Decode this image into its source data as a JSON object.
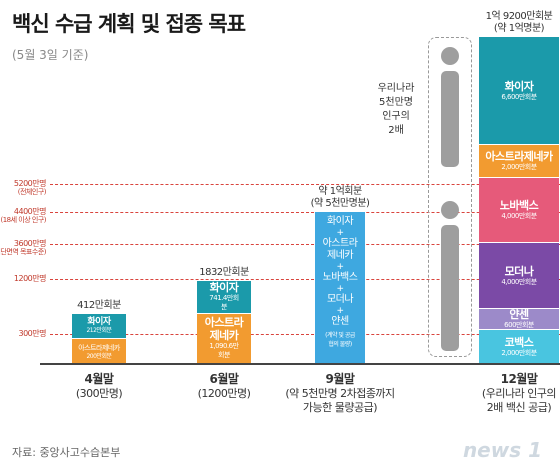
{
  "header": {
    "title": "백신 수급 계획 및 접종 목표",
    "subtitle": "(5월 3일 기준)"
  },
  "source": "자료: 중앙사고수습본부",
  "logo": "news 1",
  "colors": {
    "pfizer": "#1b9aaa",
    "astrazeneca": "#f29b30",
    "novavax": "#e65a7a",
    "moderna": "#7b4aa6",
    "janssen": "#9c8ac9",
    "covax": "#49c5e0",
    "combined": "#3ea8e0",
    "threshold": "#d9443d"
  },
  "person_note": [
    "우리나라",
    "5천만명",
    "인구의",
    "2배"
  ],
  "chart_data": {
    "type": "bar",
    "unit": "만회분",
    "thresholds": [
      {
        "value": 5200,
        "label": "5200만명",
        "note": "(전체인구)"
      },
      {
        "value": 4400,
        "label": "4400만명",
        "note": "(18세 이상 인구)"
      },
      {
        "value": 3600,
        "label": "3600만명",
        "note": "(집단면역 목표수준)"
      },
      {
        "value": 1200,
        "label": "1200만명",
        "note": ""
      },
      {
        "value": 300,
        "label": "300만명",
        "note": ""
      }
    ],
    "bars": [
      {
        "category": "4월말",
        "category_note": [
          "(300만명)"
        ],
        "total_label": "412만회분",
        "total": 412,
        "segments": [
          {
            "name": "화이자",
            "value_label": "212만회분",
            "value": 212,
            "color": "#1b9aaa"
          },
          {
            "name": "아스트라제네카",
            "value_label": "200만회분",
            "value": 200,
            "color": "#f29b30"
          }
        ]
      },
      {
        "category": "6월말",
        "category_note": [
          "(1200만명)"
        ],
        "total_label": "1832만회분",
        "total": 1832,
        "segments": [
          {
            "name": "화이자",
            "value_label": "741.4만회분",
            "value": 741.4,
            "color": "#1b9aaa"
          },
          {
            "name": "아스트라제네카",
            "value_label": "1,090.6만회분",
            "value": 1090.6,
            "color": "#f29b30"
          }
        ]
      },
      {
        "category": "9월말",
        "category_note": [
          "(약 5천만명 2차접종까지",
          "가능한 물량공급)"
        ],
        "total_label": "약 1억회분",
        "total_label2": "(약 5천만명분)",
        "total": 10000,
        "combined": true,
        "combined_items": [
          "화이자",
          "+",
          "아스트라제네카",
          "+",
          "노바백스",
          "+",
          "모더나",
          "+",
          "얀센"
        ],
        "combined_note": "(계약 및 공급 협의 물량)"
      },
      {
        "category": "12월말",
        "category_note": [
          "(우리나라 인구의",
          "2배 백신 공급)"
        ],
        "total_label": "1억 9200만회분",
        "total_label2": "(약 1억명분)",
        "total": 19200,
        "segments": [
          {
            "name": "화이자",
            "value_label": "6,600만회분",
            "value": 6600,
            "color": "#1b9aaa"
          },
          {
            "name": "아스트라제네카",
            "value_label": "2,000만회분",
            "value": 2000,
            "color": "#f29b30"
          },
          {
            "name": "노바백스",
            "value_label": "4,000만회분",
            "value": 4000,
            "color": "#e65a7a"
          },
          {
            "name": "모더나",
            "value_label": "4,000만회분",
            "value": 4000,
            "color": "#7b4aa6"
          },
          {
            "name": "얀센",
            "value_label": "600만회분",
            "value": 600,
            "color": "#9c8ac9"
          },
          {
            "name": "코백스",
            "value_label": "2,000만회분",
            "value": 2000,
            "color": "#49c5e0"
          }
        ]
      }
    ]
  }
}
